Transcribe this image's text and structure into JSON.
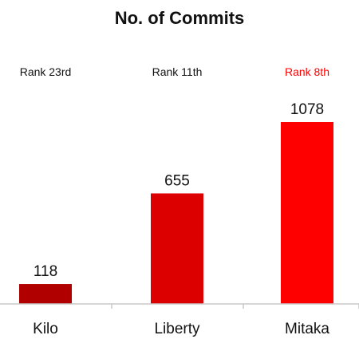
{
  "chart_data": {
    "type": "bar",
    "title": "No. of Commits",
    "categories": [
      "Kilo",
      "Liberty",
      "Mitaka"
    ],
    "values": [
      118,
      655,
      1078
    ],
    "ranks": [
      "Rank 23rd",
      "Rank 11th",
      "Rank 8th"
    ],
    "bar_colors": [
      "#b10000",
      "#dd0000",
      "#ff0000"
    ],
    "rank_colors": [
      "#111111",
      "#111111",
      "#ff0000"
    ],
    "axis_color": "#c8c8c8",
    "ylim": [
      0,
      1200
    ],
    "xlabel": "",
    "ylabel": "",
    "grid": false,
    "legend": "none"
  }
}
